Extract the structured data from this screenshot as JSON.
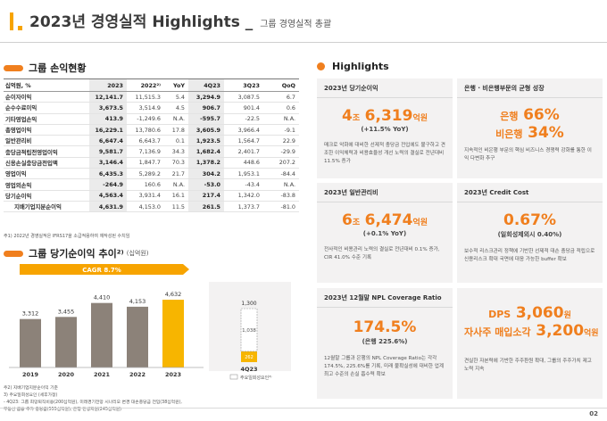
{
  "header": {
    "title": "2023년 경영실적 Highlights _",
    "subtitle": "그룹 경영실적 총괄"
  },
  "table_section": {
    "title": "그룹 손익현황",
    "columns": [
      "십억원, %",
      "2023",
      "2022²⁾",
      "YoY",
      "4Q23",
      "3Q23",
      "QoQ"
    ],
    "rows": [
      {
        "label": "순이자이익",
        "v": [
          "12,141.7",
          "11,515.3",
          "5.4",
          "3,294.9",
          "3,087.5",
          "6.7"
        ]
      },
      {
        "label": "순수수료이익",
        "v": [
          "3,673.5",
          "3,514.9",
          "4.5",
          "906.7",
          "901.4",
          "0.6"
        ]
      },
      {
        "label": "기타영업손익",
        "v": [
          "413.9",
          "-1,249.6",
          "N.A.",
          "-595.7",
          "-22.5",
          "N.A."
        ]
      },
      {
        "label": "총영업이익",
        "v": [
          "16,229.1",
          "13,780.6",
          "17.8",
          "3,605.9",
          "3,966.4",
          "-9.1"
        ]
      },
      {
        "label": "일반관리비",
        "v": [
          "6,647.4",
          "6,643.7",
          "0.1",
          "1,923.5",
          "1,564.7",
          "22.9"
        ]
      },
      {
        "label": "충당금적립전영업이익",
        "v": [
          "9,581.7",
          "7,136.9",
          "34.3",
          "1,682.4",
          "2,401.7",
          "-29.9"
        ]
      },
      {
        "label": "신용손실충당금전입액",
        "v": [
          "3,146.4",
          "1,847.7",
          "70.3",
          "1,378.2",
          "448.6",
          "207.2"
        ]
      },
      {
        "label": "영업이익",
        "v": [
          "6,435.3",
          "5,289.2",
          "21.7",
          "304.2",
          "1,953.1",
          "-84.4"
        ]
      },
      {
        "label": "영업외손익",
        "v": [
          "-264.9",
          "160.6",
          "N.A.",
          "-53.0",
          "-43.4",
          "N.A."
        ]
      },
      {
        "label": "당기순이익",
        "v": [
          "4,563.4",
          "3,931.4",
          "16.1",
          "217.4",
          "1,342.0",
          "-83.8"
        ]
      },
      {
        "label": "지배기업지분순이익",
        "v": [
          "4,631.9",
          "4,153.0",
          "11.5",
          "261.5",
          "1,373.7",
          "-81.0"
        ],
        "sub": true
      }
    ],
    "note": "주1) 2022년 경영실적은 IFRS17을 소급적용하여 재작성된 수치임"
  },
  "chart_section": {
    "title": "그룹 당기순이익 추이²⁾",
    "unit": "(십억원)",
    "cagr_label": "CAGR 8.7%",
    "quarter_label": "4Q23",
    "legend_label": "주요일회성요인³⁾",
    "notes": [
      "주2) 지배기업지분순이익 기준",
      "  3) 주요일회성요인 (세후가정)",
      "  - 4Q23: 그룹 희망퇴직비용(200십억원), 미래경기전망 시나리오 변경 대손충당금 전입(38십억원),",
      "          부동산 금융 추가 충당금(555십억원), 은행 민생지원(245십억원)"
    ]
  },
  "chart_data": [
    {
      "type": "bar",
      "categories": [
        "2019",
        "2020",
        "2021",
        "2022",
        "2023"
      ],
      "values": [
        3312,
        3455,
        4410,
        4153,
        4632
      ],
      "highlight_color": "#f7b500",
      "base_color": "#8c8279"
    },
    {
      "type": "bar",
      "stacked": true,
      "categories": [
        "4Q23"
      ],
      "total_label": "1,300",
      "segment_label": "1,038",
      "series": [
        {
          "name": "",
          "values": [
            262
          ]
        },
        {
          "name": "주요일회성요인",
          "values": [
            1038
          ]
        }
      ]
    }
  ],
  "highlights": {
    "title": "Highlights",
    "cards": [
      {
        "head": "2023년 당기순이익",
        "big_pre": "4",
        "big_pre_unit": "조",
        "big": "6,319",
        "big_unit": "억원",
        "paren": "(+11.5% YoY)",
        "desc": "매크로 악화에 대비한 선제적 충당금 전입에도 불구하고 견조한 이익체력과 비용효율성 개선 노력의 결실로 전년대비 11.5% 증가"
      },
      {
        "head": "은행 · 비은행부문의 균형 성장",
        "line1_label": "은행",
        "line1_value": "66%",
        "line2_label": "비은행",
        "line2_value": "34%",
        "desc": "지속적인 비은행 부문의 핵심 비즈니스 경쟁력 강화를 통한 이익 다변화 추구"
      },
      {
        "head": "2023년 일반관리비",
        "big_pre": "6",
        "big_pre_unit": "조",
        "big": "6,474",
        "big_unit": "억원",
        "paren": "(+0.1% YoY)",
        "desc": "전사적인 비용관리 노력의 결실로 전년대비 0.1% 증가, CIR 41.0% 수준 기록"
      },
      {
        "head": "2023년 Credit Cost",
        "big": "0.67%",
        "paren": "(일회성제외시 0.40%)",
        "desc": "보수적 리스크관리 정책에 기반한 선제적 대손 충당금 적립으로 신용리스크 확대 국면에 대응 가능한 buffer 확보"
      },
      {
        "head": "2023년 12월말 NPL Coverage Ratio",
        "big": "174.5%",
        "paren": "(은행 225.6%)",
        "desc": "12월말 그룹과 은행의 NPL Coverage Ratio는 각각 174.5%, 225.6%를 기록, 미래 불확실성에 대비한 업계 최고 수준의 손실 흡수력 확보"
      },
      {
        "head": "",
        "line1_label": "DPS",
        "line1_value": "3,060",
        "line1_unit": "원",
        "line2_label": "자사주 매입소각",
        "line2_value": "3,200",
        "line2_unit": "억원",
        "desc": "견실한 자본력에 기반한 주주환원 확대, 그룹의 주주가치 제고 노력 지속"
      }
    ]
  },
  "page_number": "02"
}
